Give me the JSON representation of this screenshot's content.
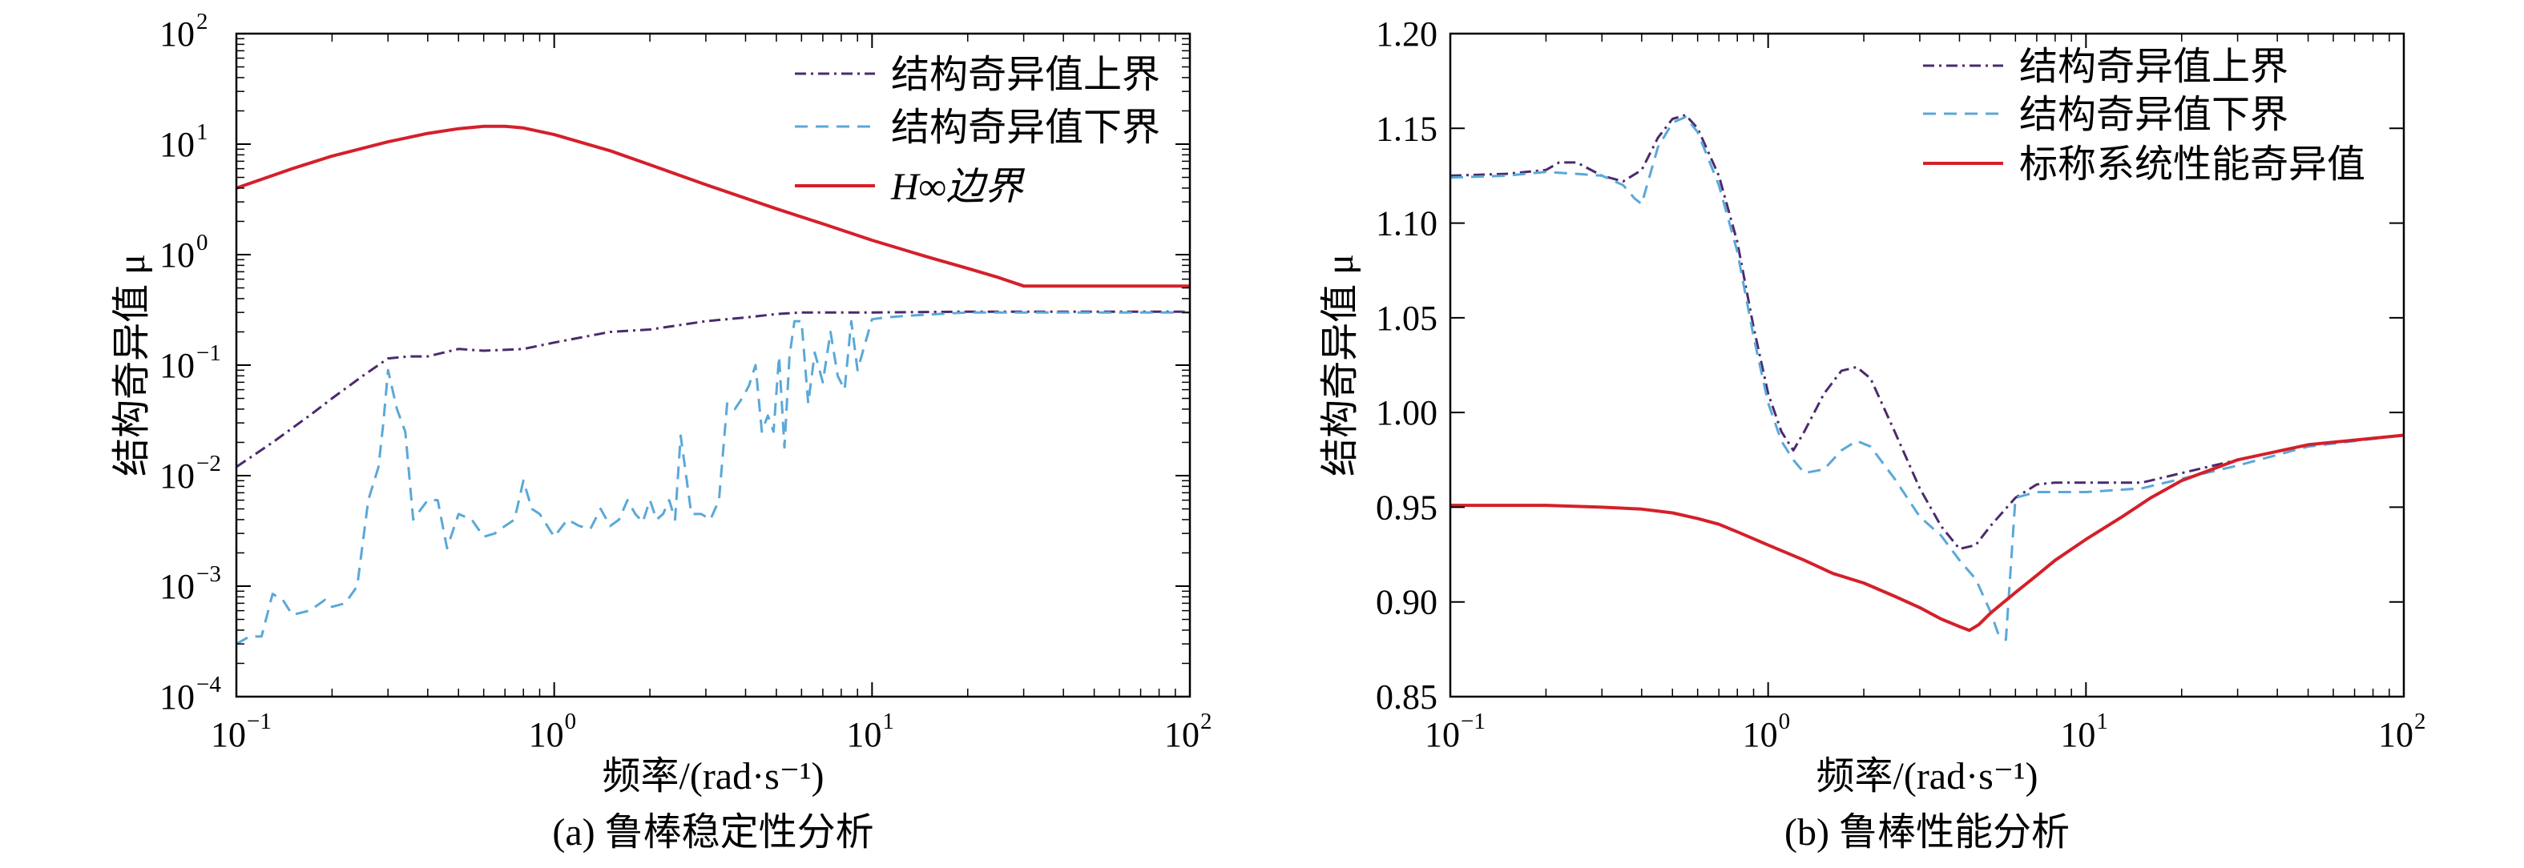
{
  "colors": {
    "upper": "#4b2a6e",
    "lower": "#5aa8d8",
    "red": "#d4202a",
    "axis": "#000000"
  },
  "chart_data": [
    {
      "type": "line",
      "caption": "(a) 鲁棒稳定性分析",
      "xlabel": "频率/(rad·s⁻¹)",
      "ylabel": "结构奇异值 μ",
      "xscale": "log",
      "yscale": "log",
      "xlim": [
        0.1,
        100
      ],
      "ylim": [
        0.0001,
        100
      ],
      "legend_position": "top-right",
      "x_ticks": [
        {
          "base": "10",
          "exp": "−1",
          "value": 0.1
        },
        {
          "base": "10",
          "exp": "0",
          "value": 1
        },
        {
          "base": "10",
          "exp": "1",
          "value": 10
        },
        {
          "base": "10",
          "exp": "2",
          "value": 100
        }
      ],
      "y_ticks": [
        {
          "base": "10",
          "exp": "−4",
          "value": 0.0001
        },
        {
          "base": "10",
          "exp": "−3",
          "value": 0.001
        },
        {
          "base": "10",
          "exp": "−2",
          "value": 0.01
        },
        {
          "base": "10",
          "exp": "−1",
          "value": 0.1
        },
        {
          "base": "10",
          "exp": "0",
          "value": 1
        },
        {
          "base": "10",
          "exp": "1",
          "value": 10
        },
        {
          "base": "10",
          "exp": "2",
          "value": 100
        }
      ],
      "series": [
        {
          "name": "结构奇异值上界",
          "style": "dashdot",
          "color_key": "upper",
          "x": [
            0.1,
            0.13,
            0.17,
            0.2,
            0.25,
            0.3,
            0.35,
            0.4,
            0.5,
            0.6,
            0.8,
            1.0,
            1.5,
            2.0,
            3.0,
            4.0,
            5.0,
            6.0,
            8.0,
            10,
            20,
            50,
            100
          ],
          "y": [
            0.012,
            0.02,
            0.035,
            0.05,
            0.08,
            0.115,
            0.12,
            0.12,
            0.14,
            0.135,
            0.14,
            0.16,
            0.2,
            0.21,
            0.25,
            0.27,
            0.29,
            0.3,
            0.3,
            0.3,
            0.305,
            0.305,
            0.305
          ]
        },
        {
          "name": "结构奇异值下界",
          "style": "dashed",
          "color_key": "lower",
          "x": [
            0.1,
            0.11,
            0.12,
            0.13,
            0.14,
            0.15,
            0.17,
            0.19,
            0.2,
            0.22,
            0.24,
            0.26,
            0.28,
            0.29,
            0.3,
            0.32,
            0.34,
            0.36,
            0.4,
            0.43,
            0.46,
            0.5,
            0.55,
            0.6,
            0.65,
            0.7,
            0.75,
            0.8,
            0.85,
            0.9,
            1.0,
            1.1,
            1.2,
            1.3,
            1.4,
            1.5,
            1.6,
            1.7,
            1.8,
            1.9,
            2.0,
            2.1,
            2.2,
            2.3,
            2.4,
            2.5,
            2.7,
            2.9,
            3.1,
            3.3,
            3.5,
            3.7,
            3.9,
            4.1,
            4.3,
            4.5,
            4.7,
            4.9,
            5.1,
            5.3,
            5.5,
            5.7,
            6.0,
            6.3,
            6.6,
            7.0,
            7.4,
            7.8,
            8.2,
            8.6,
            9.0,
            10,
            11,
            13,
            16,
            20,
            30,
            50,
            100
          ],
          "y": [
            0.0003,
            0.00035,
            0.00035,
            0.00085,
            0.00075,
            0.00055,
            0.0006,
            0.00075,
            0.00065,
            0.0007,
            0.001,
            0.006,
            0.012,
            0.03,
            0.09,
            0.04,
            0.025,
            0.004,
            0.006,
            0.006,
            0.0022,
            0.0045,
            0.004,
            0.0028,
            0.003,
            0.0035,
            0.004,
            0.009,
            0.005,
            0.0045,
            0.0028,
            0.004,
            0.0035,
            0.0033,
            0.005,
            0.0035,
            0.004,
            0.006,
            0.0045,
            0.0038,
            0.006,
            0.004,
            0.0045,
            0.006,
            0.004,
            0.023,
            0.0045,
            0.0045,
            0.004,
            0.006,
            0.045,
            0.04,
            0.05,
            0.065,
            0.1,
            0.025,
            0.035,
            0.025,
            0.12,
            0.018,
            0.12,
            0.25,
            0.25,
            0.045,
            0.13,
            0.07,
            0.2,
            0.08,
            0.06,
            0.25,
            0.09,
            0.26,
            0.27,
            0.28,
            0.29,
            0.3,
            0.3,
            0.3,
            0.3
          ]
        },
        {
          "name": "H∞边界",
          "style": "solid",
          "color_key": "red",
          "x": [
            0.1,
            0.15,
            0.2,
            0.3,
            0.4,
            0.5,
            0.6,
            0.7,
            0.8,
            1.0,
            1.5,
            2.0,
            3.0,
            5.0,
            7.0,
            10,
            15,
            20,
            25,
            30,
            50,
            100
          ],
          "y": [
            4.0,
            6.0,
            7.8,
            10.5,
            12.5,
            13.8,
            14.5,
            14.5,
            14.0,
            12.2,
            8.7,
            6.5,
            4.3,
            2.6,
            1.9,
            1.35,
            0.95,
            0.75,
            0.62,
            0.52,
            0.52,
            0.52
          ]
        }
      ]
    },
    {
      "type": "line",
      "caption": "(b) 鲁棒性能分析",
      "xlabel": "频率/(rad·s⁻¹)",
      "ylabel": "结构奇异值 μ",
      "xscale": "log",
      "yscale": "linear",
      "xlim": [
        0.1,
        100
      ],
      "ylim": [
        0.85,
        1.2
      ],
      "legend_position": "top-right",
      "x_ticks": [
        {
          "base": "10",
          "exp": "−1",
          "value": 0.1
        },
        {
          "base": "10",
          "exp": "0",
          "value": 1
        },
        {
          "base": "10",
          "exp": "1",
          "value": 10
        },
        {
          "base": "10",
          "exp": "2",
          "value": 100
        }
      ],
      "y_ticks": [
        "0.85",
        "0.90",
        "0.95",
        "1.00",
        "1.05",
        "1.10",
        "1.15",
        "1.20"
      ],
      "series": [
        {
          "name": "结构奇异值上界",
          "style": "dashdot",
          "color_key": "upper",
          "x": [
            0.1,
            0.15,
            0.2,
            0.22,
            0.25,
            0.3,
            0.35,
            0.4,
            0.45,
            0.5,
            0.55,
            0.6,
            0.7,
            0.8,
            0.9,
            1.0,
            1.1,
            1.2,
            1.3,
            1.5,
            1.7,
            1.9,
            2.1,
            2.5,
            3.0,
            3.5,
            4.0,
            4.5,
            5.0,
            6.0,
            7.0,
            8.0,
            10,
            15,
            20,
            30,
            50,
            100
          ],
          "y": [
            1.125,
            1.126,
            1.128,
            1.132,
            1.132,
            1.125,
            1.122,
            1.128,
            1.145,
            1.155,
            1.157,
            1.15,
            1.125,
            1.09,
            1.045,
            1.01,
            0.99,
            0.98,
            0.99,
            1.01,
            1.022,
            1.024,
            1.018,
            0.99,
            0.96,
            0.94,
            0.928,
            0.93,
            0.94,
            0.955,
            0.962,
            0.963,
            0.963,
            0.963,
            0.968,
            0.975,
            0.983,
            0.988
          ]
        },
        {
          "name": "结构奇异值下界",
          "style": "dashed",
          "color_key": "lower",
          "x": [
            0.1,
            0.15,
            0.2,
            0.25,
            0.3,
            0.35,
            0.38,
            0.4,
            0.45,
            0.5,
            0.55,
            0.6,
            0.7,
            0.8,
            0.9,
            1.0,
            1.1,
            1.2,
            1.3,
            1.5,
            1.7,
            1.9,
            2.1,
            2.5,
            3.0,
            3.5,
            4.0,
            4.5,
            5.0,
            5.3,
            5.6,
            6.0,
            7.0,
            8.0,
            10,
            15,
            20,
            30,
            50,
            100
          ],
          "y": [
            1.124,
            1.125,
            1.127,
            1.126,
            1.125,
            1.12,
            1.113,
            1.11,
            1.14,
            1.153,
            1.156,
            1.148,
            1.12,
            1.085,
            1.04,
            1.005,
            0.985,
            0.975,
            0.968,
            0.97,
            0.98,
            0.985,
            0.982,
            0.965,
            0.945,
            0.935,
            0.922,
            0.912,
            0.895,
            0.883,
            0.88,
            0.955,
            0.958,
            0.958,
            0.958,
            0.96,
            0.965,
            0.972,
            0.982,
            0.988
          ]
        },
        {
          "name": "标称系统性能奇异值",
          "style": "solid",
          "color_key": "red",
          "x": [
            0.1,
            0.2,
            0.3,
            0.4,
            0.5,
            0.6,
            0.7,
            0.8,
            1.0,
            1.3,
            1.6,
            2.0,
            2.5,
            3.0,
            3.5,
            4.0,
            4.3,
            4.6,
            5.0,
            6.0,
            7.0,
            8.0,
            10,
            13,
            16,
            20,
            30,
            50,
            100
          ],
          "y": [
            0.951,
            0.951,
            0.95,
            0.949,
            0.947,
            0.944,
            0.941,
            0.937,
            0.93,
            0.922,
            0.915,
            0.91,
            0.903,
            0.897,
            0.891,
            0.887,
            0.885,
            0.888,
            0.894,
            0.905,
            0.914,
            0.922,
            0.933,
            0.945,
            0.955,
            0.964,
            0.975,
            0.983,
            0.988
          ]
        }
      ]
    }
  ]
}
